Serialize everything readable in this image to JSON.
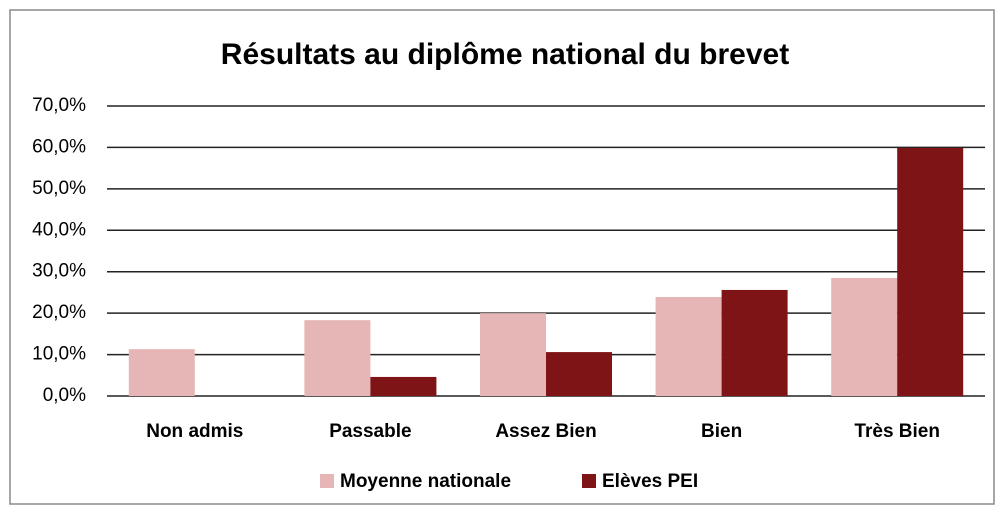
{
  "chart_data": {
    "type": "bar",
    "title": "Résultats au diplôme national du brevet",
    "categories": [
      "Non admis",
      "Passable",
      "Assez Bien",
      "Bien",
      "Très Bien"
    ],
    "series": [
      {
        "name": "Moyenne nationale",
        "color": "#e6b5b5",
        "values": [
          11.3,
          18.3,
          20.0,
          23.9,
          28.5
        ]
      },
      {
        "name": "Elèves PEI",
        "color": "#7f1416",
        "values": [
          0,
          4.6,
          10.6,
          25.6,
          59.9
        ]
      }
    ],
    "ylim": [
      0,
      70
    ],
    "yticks": [
      {
        "value": 0,
        "label": "0,0%"
      },
      {
        "value": 10,
        "label": "10,0%"
      },
      {
        "value": 20,
        "label": "20,0%"
      },
      {
        "value": 30,
        "label": "30,0%"
      },
      {
        "value": 40,
        "label": "40,0%"
      },
      {
        "value": 50,
        "label": "50,0%"
      },
      {
        "value": 60,
        "label": "60,0%"
      },
      {
        "value": 70,
        "label": "70,0%"
      }
    ],
    "grid": true,
    "legend": "bottom"
  }
}
